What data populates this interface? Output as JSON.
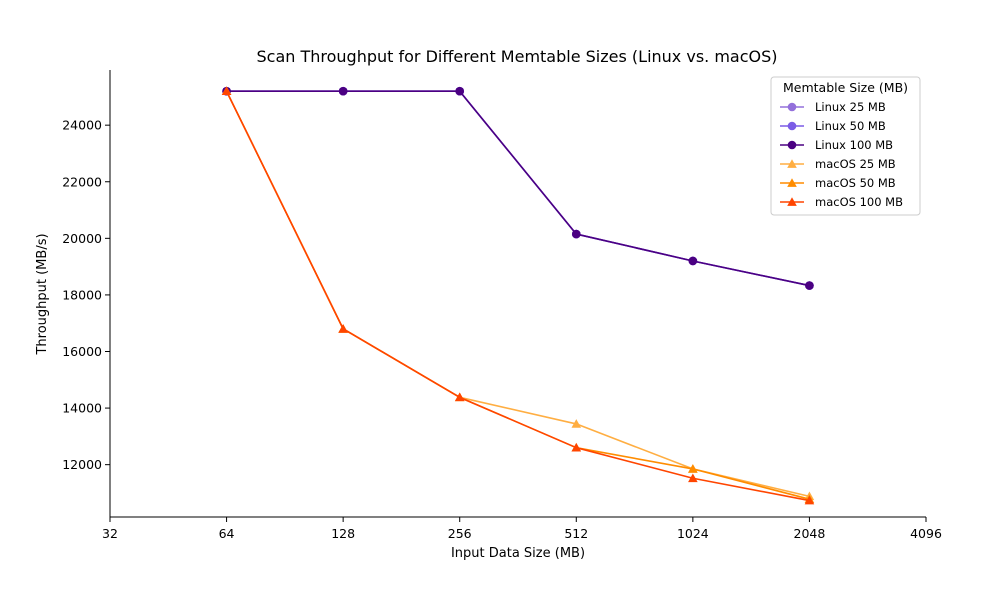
{
  "chart_data": {
    "type": "line",
    "title": "Scan Throughput for Different Memtable Sizes (Linux vs. macOS)",
    "xlabel": "Input Data Size (MB)",
    "ylabel": "Throughput (MB/s)",
    "xscale": "log2",
    "xlim": [
      32,
      4096
    ],
    "ylim": [
      10150,
      25950
    ],
    "x_ticks": [
      32,
      64,
      128,
      256,
      512,
      1024,
      2048,
      4096
    ],
    "x_tick_labels": [
      "32",
      "64",
      "128",
      "256",
      "512",
      "1024",
      "2048",
      "4096"
    ],
    "y_ticks": [
      12000,
      14000,
      16000,
      18000,
      20000,
      22000,
      24000
    ],
    "y_tick_labels": [
      "12000",
      "14000",
      "16000",
      "18000",
      "20000",
      "22000",
      "24000"
    ],
    "grid": false,
    "legend": {
      "title": "Memtable Size (MB)",
      "placement": "top-right"
    },
    "x": [
      64,
      128,
      256,
      512,
      1024,
      2048
    ],
    "series": [
      {
        "name": "Linux 25 MB",
        "marker": "circle",
        "color": "#9370db",
        "values": [
          25200,
          25200,
          25200,
          20150,
          19200,
          18330
        ]
      },
      {
        "name": "Linux 50 MB",
        "marker": "circle",
        "color": "#7b5ce6",
        "values": [
          25200,
          25200,
          25200,
          20150,
          19200,
          18330
        ]
      },
      {
        "name": "Linux 100 MB",
        "marker": "circle",
        "color": "#4b0082",
        "values": [
          25200,
          25200,
          25200,
          20150,
          19200,
          18330
        ]
      },
      {
        "name": "macOS 25 MB",
        "marker": "triangle",
        "color": "#ffae42",
        "values": [
          25200,
          16800,
          14380,
          13440,
          11850,
          10880
        ]
      },
      {
        "name": "macOS 50 MB",
        "marker": "triangle",
        "color": "#ff8c00",
        "values": [
          25200,
          16800,
          14380,
          12600,
          11850,
          10780
        ]
      },
      {
        "name": "macOS 100 MB",
        "marker": "triangle",
        "color": "#ff4500",
        "values": [
          25200,
          16800,
          14380,
          12600,
          11520,
          10730
        ]
      }
    ]
  }
}
